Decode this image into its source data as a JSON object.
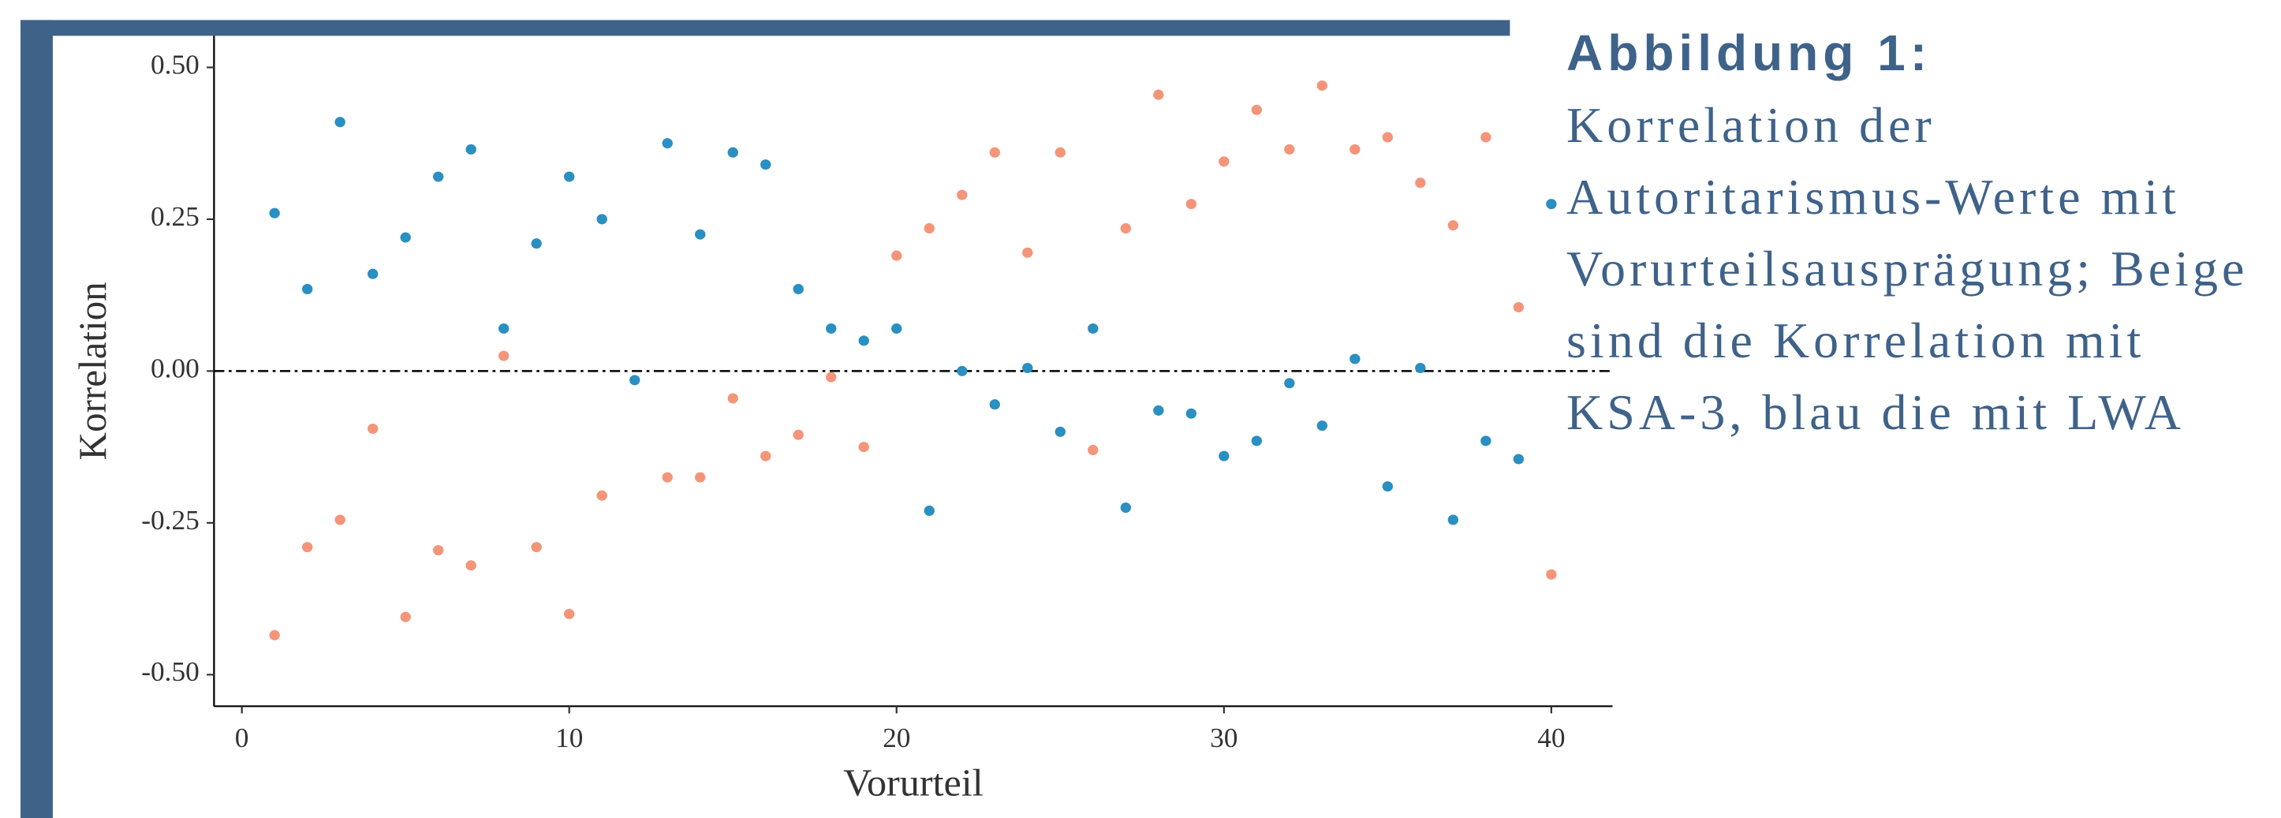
{
  "chart_data": {
    "type": "scatter",
    "xlabel": "Vorurteil",
    "ylabel": "Korrelation",
    "x": [
      1,
      2,
      3,
      4,
      5,
      6,
      7,
      8,
      9,
      10,
      11,
      12,
      13,
      14,
      15,
      16,
      17,
      18,
      19,
      20,
      21,
      22,
      23,
      24,
      25,
      26,
      27,
      28,
      29,
      30,
      31,
      32,
      33,
      34,
      35,
      36,
      37,
      38,
      39,
      40
    ],
    "series": [
      {
        "color": "#f4957a",
        "values": [
          -0.435,
          -0.29,
          -0.245,
          -0.095,
          -0.405,
          -0.295,
          -0.32,
          0.025,
          -0.29,
          -0.4,
          -0.205,
          null,
          -0.175,
          -0.175,
          -0.045,
          -0.14,
          -0.105,
          -0.01,
          -0.125,
          0.19,
          0.235,
          0.29,
          0.36,
          0.195,
          0.36,
          -0.13,
          0.235,
          0.455,
          0.275,
          0.345,
          0.43,
          0.365,
          0.47,
          0.365,
          0.385,
          0.31,
          0.24,
          0.385,
          0.105,
          -0.335
        ]
      },
      {
        "color": "#2a8fc1",
        "values": [
          0.26,
          0.135,
          0.41,
          0.16,
          0.22,
          0.32,
          0.365,
          0.07,
          0.21,
          0.32,
          0.25,
          -0.015,
          0.375,
          0.225,
          0.36,
          0.34,
          0.135,
          0.07,
          0.05,
          0.07,
          -0.23,
          0.0,
          -0.055,
          0.005,
          -0.1,
          0.07,
          -0.225,
          -0.065,
          -0.07,
          -0.14,
          -0.115,
          -0.02,
          -0.09,
          0.02,
          -0.19,
          0.005,
          -0.245,
          -0.115,
          -0.145,
          0.275
        ]
      }
    ],
    "hline": 0,
    "xlim": [
      -0.85,
      41.87
    ],
    "ylim": [
      -0.552,
      0.552
    ],
    "xticks": [
      0,
      10,
      20,
      30,
      40
    ],
    "yticks": [
      {
        "value": -0.5,
        "label": "-0.50"
      },
      {
        "value": -0.25,
        "label": "-0.25"
      },
      {
        "value": 0,
        "label": "0.00"
      },
      {
        "value": 0.25,
        "label": "0.25"
      },
      {
        "value": 0.5,
        "label": "0.50"
      }
    ]
  },
  "caption": {
    "heading": "Abbildung 1:",
    "text": "Korrelation der Autoritarismus-Werte mit Vorurteilsausprägung; Beige sind die Korrelation mit KSA-3, blau die mit LWA"
  }
}
